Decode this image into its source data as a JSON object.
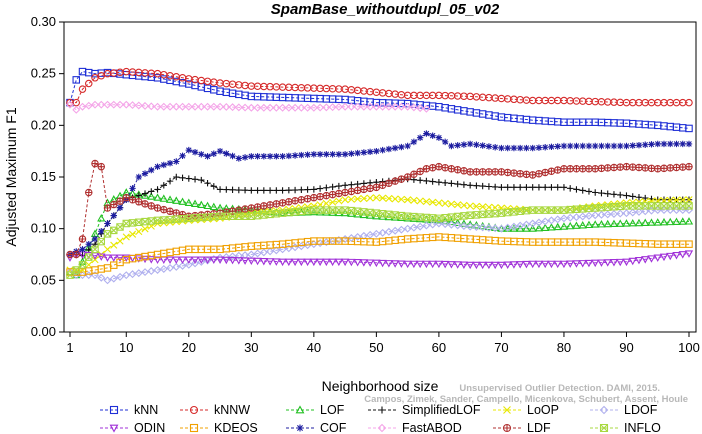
{
  "chart_data": {
    "type": "line",
    "title": "SpamBase_withoutdupl_05_v02",
    "xlabel": "Neighborhood size",
    "ylabel": "Adjusted Maximum F1",
    "xlim": [
      1,
      100
    ],
    "ylim": [
      0,
      0.3
    ],
    "x_ticks": [
      1,
      10,
      20,
      30,
      40,
      50,
      60,
      70,
      80,
      90,
      100
    ],
    "y_ticks": [
      "0.00",
      "0.05",
      "0.10",
      "0.15",
      "0.20",
      "0.25",
      "0.30"
    ],
    "grid": false,
    "legend_position": "bottom",
    "credit": "Campos, Zimek, Sander, Campello, Micenkova, Schubert, Assent, Houle",
    "credit_line1": "Unsupervised Outlier Detection. DAMI, 2015.",
    "series": [
      {
        "name": "kNN",
        "color": "#1f2fd6",
        "marker": "square",
        "points": [
          [
            1,
            0.222
          ],
          [
            2,
            0.244
          ],
          [
            3,
            0.252
          ],
          [
            5,
            0.25
          ],
          [
            7,
            0.251
          ],
          [
            10,
            0.249
          ],
          [
            15,
            0.246
          ],
          [
            20,
            0.24
          ],
          [
            25,
            0.233
          ],
          [
            30,
            0.228
          ],
          [
            35,
            0.227
          ],
          [
            40,
            0.226
          ],
          [
            45,
            0.225
          ],
          [
            50,
            0.222
          ],
          [
            55,
            0.221
          ],
          [
            60,
            0.218
          ],
          [
            65,
            0.213
          ],
          [
            70,
            0.208
          ],
          [
            75,
            0.205
          ],
          [
            80,
            0.203
          ],
          [
            85,
            0.203
          ],
          [
            90,
            0.202
          ],
          [
            95,
            0.2
          ],
          [
            100,
            0.197
          ]
        ]
      },
      {
        "name": "kNNW",
        "color": "#d62a2a",
        "marker": "circle",
        "points": [
          [
            1,
            0.222
          ],
          [
            2,
            0.222
          ],
          [
            3,
            0.235
          ],
          [
            5,
            0.246
          ],
          [
            7,
            0.25
          ],
          [
            10,
            0.252
          ],
          [
            15,
            0.25
          ],
          [
            20,
            0.245
          ],
          [
            25,
            0.241
          ],
          [
            30,
            0.238
          ],
          [
            35,
            0.237
          ],
          [
            40,
            0.236
          ],
          [
            45,
            0.235
          ],
          [
            50,
            0.232
          ],
          [
            55,
            0.229
          ],
          [
            60,
            0.229
          ],
          [
            65,
            0.228
          ],
          [
            70,
            0.226
          ],
          [
            75,
            0.224
          ],
          [
            80,
            0.224
          ],
          [
            85,
            0.223
          ],
          [
            90,
            0.222
          ],
          [
            95,
            0.222
          ],
          [
            100,
            0.222
          ]
        ]
      },
      {
        "name": "LOF",
        "color": "#22c022",
        "marker": "triangle-up",
        "points": [
          [
            1,
            0.058
          ],
          [
            2,
            0.055
          ],
          [
            3,
            0.068
          ],
          [
            5,
            0.095
          ],
          [
            7,
            0.125
          ],
          [
            10,
            0.135
          ],
          [
            15,
            0.13
          ],
          [
            20,
            0.125
          ],
          [
            25,
            0.12
          ],
          [
            30,
            0.118
          ],
          [
            35,
            0.115
          ],
          [
            40,
            0.116
          ],
          [
            45,
            0.115
          ],
          [
            50,
            0.112
          ],
          [
            55,
            0.11
          ],
          [
            60,
            0.108
          ],
          [
            65,
            0.104
          ],
          [
            70,
            0.1
          ],
          [
            75,
            0.1
          ],
          [
            80,
            0.102
          ],
          [
            85,
            0.104
          ],
          [
            90,
            0.105
          ],
          [
            95,
            0.106
          ],
          [
            100,
            0.107
          ]
        ]
      },
      {
        "name": "SimplifiedLOF",
        "color": "#111111",
        "marker": "plus",
        "points": [
          [
            1,
            0.075
          ],
          [
            2,
            0.075
          ],
          [
            3,
            0.074
          ],
          [
            5,
            0.085
          ],
          [
            7,
            0.105
          ],
          [
            10,
            0.128
          ],
          [
            15,
            0.138
          ],
          [
            18,
            0.15
          ],
          [
            22,
            0.147
          ],
          [
            25,
            0.138
          ],
          [
            30,
            0.137
          ],
          [
            35,
            0.137
          ],
          [
            40,
            0.138
          ],
          [
            45,
            0.142
          ],
          [
            50,
            0.145
          ],
          [
            55,
            0.148
          ],
          [
            60,
            0.145
          ],
          [
            65,
            0.142
          ],
          [
            70,
            0.14
          ],
          [
            75,
            0.14
          ],
          [
            80,
            0.14
          ],
          [
            85,
            0.135
          ],
          [
            90,
            0.132
          ],
          [
            95,
            0.128
          ],
          [
            100,
            0.128
          ]
        ]
      },
      {
        "name": "LoOP",
        "color": "#e8e800",
        "marker": "cross",
        "points": [
          [
            1,
            0.06
          ],
          [
            2,
            0.058
          ],
          [
            3,
            0.06
          ],
          [
            5,
            0.07
          ],
          [
            7,
            0.08
          ],
          [
            10,
            0.092
          ],
          [
            15,
            0.105
          ],
          [
            20,
            0.108
          ],
          [
            25,
            0.11
          ],
          [
            30,
            0.115
          ],
          [
            35,
            0.118
          ],
          [
            40,
            0.122
          ],
          [
            45,
            0.128
          ],
          [
            50,
            0.13
          ],
          [
            55,
            0.128
          ],
          [
            60,
            0.125
          ],
          [
            65,
            0.122
          ],
          [
            70,
            0.12
          ],
          [
            75,
            0.118
          ],
          [
            80,
            0.118
          ],
          [
            85,
            0.122
          ],
          [
            90,
            0.125
          ],
          [
            95,
            0.127
          ],
          [
            100,
            0.128
          ]
        ]
      },
      {
        "name": "LDOF",
        "color": "#b0b0ee",
        "marker": "diamond",
        "points": [
          [
            1,
            0.058
          ],
          [
            2,
            0.055
          ],
          [
            3,
            0.055
          ],
          [
            5,
            0.055
          ],
          [
            7,
            0.05
          ],
          [
            10,
            0.055
          ],
          [
            15,
            0.06
          ],
          [
            20,
            0.065
          ],
          [
            25,
            0.072
          ],
          [
            30,
            0.075
          ],
          [
            35,
            0.08
          ],
          [
            40,
            0.085
          ],
          [
            45,
            0.09
          ],
          [
            50,
            0.095
          ],
          [
            55,
            0.1
          ],
          [
            60,
            0.105
          ],
          [
            65,
            0.102
          ],
          [
            70,
            0.1
          ],
          [
            75,
            0.105
          ],
          [
            80,
            0.11
          ],
          [
            85,
            0.113
          ],
          [
            90,
            0.115
          ],
          [
            95,
            0.118
          ],
          [
            100,
            0.118
          ]
        ]
      },
      {
        "name": "ODIN",
        "color": "#a030d8",
        "marker": "triangle-down",
        "points": [
          [
            1,
            0.072
          ],
          [
            2,
            0.075
          ],
          [
            3,
            0.075
          ],
          [
            5,
            0.074
          ],
          [
            7,
            0.072
          ],
          [
            10,
            0.072
          ],
          [
            15,
            0.07
          ],
          [
            20,
            0.07
          ],
          [
            25,
            0.07
          ],
          [
            30,
            0.069
          ],
          [
            35,
            0.068
          ],
          [
            40,
            0.068
          ],
          [
            45,
            0.068
          ],
          [
            50,
            0.067
          ],
          [
            55,
            0.066
          ],
          [
            60,
            0.066
          ],
          [
            65,
            0.065
          ],
          [
            70,
            0.065
          ],
          [
            75,
            0.066
          ],
          [
            80,
            0.066
          ],
          [
            85,
            0.067
          ],
          [
            90,
            0.068
          ],
          [
            95,
            0.072
          ],
          [
            100,
            0.076
          ]
        ]
      },
      {
        "name": "KDEOS",
        "color": "#f0a000",
        "marker": "square",
        "points": [
          [
            1,
            0.058
          ],
          [
            2,
            0.058
          ],
          [
            3,
            0.058
          ],
          [
            5,
            0.06
          ],
          [
            7,
            0.062
          ],
          [
            10,
            0.07
          ],
          [
            15,
            0.075
          ],
          [
            20,
            0.08
          ],
          [
            25,
            0.08
          ],
          [
            30,
            0.083
          ],
          [
            35,
            0.085
          ],
          [
            40,
            0.088
          ],
          [
            45,
            0.088
          ],
          [
            50,
            0.087
          ],
          [
            55,
            0.09
          ],
          [
            60,
            0.092
          ],
          [
            65,
            0.09
          ],
          [
            70,
            0.088
          ],
          [
            75,
            0.087
          ],
          [
            80,
            0.087
          ],
          [
            85,
            0.087
          ],
          [
            90,
            0.086
          ],
          [
            95,
            0.085
          ],
          [
            100,
            0.085
          ]
        ]
      },
      {
        "name": "COF",
        "color": "#1c1ca0",
        "marker": "asterisk",
        "points": [
          [
            1,
            0.075
          ],
          [
            2,
            0.078
          ],
          [
            3,
            0.08
          ],
          [
            5,
            0.09
          ],
          [
            7,
            0.105
          ],
          [
            10,
            0.128
          ],
          [
            12,
            0.15
          ],
          [
            15,
            0.16
          ],
          [
            18,
            0.165
          ],
          [
            20,
            0.176
          ],
          [
            23,
            0.17
          ],
          [
            25,
            0.175
          ],
          [
            28,
            0.168
          ],
          [
            30,
            0.17
          ],
          [
            35,
            0.17
          ],
          [
            40,
            0.172
          ],
          [
            45,
            0.172
          ],
          [
            50,
            0.175
          ],
          [
            55,
            0.18
          ],
          [
            58,
            0.192
          ],
          [
            60,
            0.188
          ],
          [
            62,
            0.18
          ],
          [
            65,
            0.182
          ],
          [
            70,
            0.178
          ],
          [
            75,
            0.178
          ],
          [
            80,
            0.18
          ],
          [
            85,
            0.18
          ],
          [
            90,
            0.18
          ],
          [
            95,
            0.182
          ],
          [
            100,
            0.182
          ]
        ]
      },
      {
        "name": "FastABOD",
        "color": "#f4a4e8",
        "marker": "diamond",
        "points": [
          [
            1,
            0.22
          ],
          [
            2,
            0.215
          ],
          [
            3,
            0.218
          ],
          [
            5,
            0.22
          ],
          [
            7,
            0.22
          ],
          [
            10,
            0.22
          ],
          [
            15,
            0.218
          ],
          [
            20,
            0.218
          ],
          [
            25,
            0.218
          ],
          [
            30,
            0.217
          ],
          [
            35,
            0.217
          ],
          [
            40,
            0.217
          ],
          [
            45,
            0.218
          ],
          [
            50,
            0.218
          ],
          [
            55,
            0.218
          ],
          [
            58,
            0.216
          ]
        ]
      },
      {
        "name": "LDF",
        "color": "#b03030",
        "marker": "circle-plus",
        "points": [
          [
            1,
            0.075
          ],
          [
            2,
            0.075
          ],
          [
            3,
            0.09
          ],
          [
            4,
            0.135
          ],
          [
            5,
            0.163
          ],
          [
            6,
            0.16
          ],
          [
            7,
            0.12
          ],
          [
            10,
            0.13
          ],
          [
            15,
            0.12
          ],
          [
            20,
            0.112
          ],
          [
            25,
            0.115
          ],
          [
            30,
            0.12
          ],
          [
            35,
            0.125
          ],
          [
            40,
            0.13
          ],
          [
            45,
            0.135
          ],
          [
            50,
            0.14
          ],
          [
            55,
            0.15
          ],
          [
            58,
            0.158
          ],
          [
            60,
            0.16
          ],
          [
            65,
            0.155
          ],
          [
            70,
            0.155
          ],
          [
            75,
            0.152
          ],
          [
            80,
            0.158
          ],
          [
            85,
            0.158
          ],
          [
            90,
            0.16
          ],
          [
            95,
            0.158
          ],
          [
            100,
            0.16
          ]
        ]
      },
      {
        "name": "INFLO",
        "color": "#a8d840",
        "marker": "square-x",
        "points": [
          [
            1,
            0.055
          ],
          [
            2,
            0.06
          ],
          [
            3,
            0.065
          ],
          [
            5,
            0.08
          ],
          [
            7,
            0.095
          ],
          [
            10,
            0.105
          ],
          [
            15,
            0.108
          ],
          [
            20,
            0.11
          ],
          [
            25,
            0.112
          ],
          [
            30,
            0.112
          ],
          [
            35,
            0.115
          ],
          [
            40,
            0.118
          ],
          [
            45,
            0.118
          ],
          [
            50,
            0.115
          ],
          [
            55,
            0.112
          ],
          [
            60,
            0.11
          ],
          [
            65,
            0.113
          ],
          [
            70,
            0.115
          ],
          [
            75,
            0.118
          ],
          [
            80,
            0.118
          ],
          [
            85,
            0.12
          ],
          [
            90,
            0.122
          ],
          [
            95,
            0.122
          ],
          [
            100,
            0.122
          ]
        ]
      }
    ],
    "legend_rows": [
      [
        "kNN",
        "kNNW",
        "LOF",
        "SimplifiedLOF",
        "LoOP",
        "LDOF"
      ],
      [
        "ODIN",
        "KDEOS",
        "COF",
        "FastABOD",
        "LDF",
        "INFLO"
      ]
    ]
  }
}
